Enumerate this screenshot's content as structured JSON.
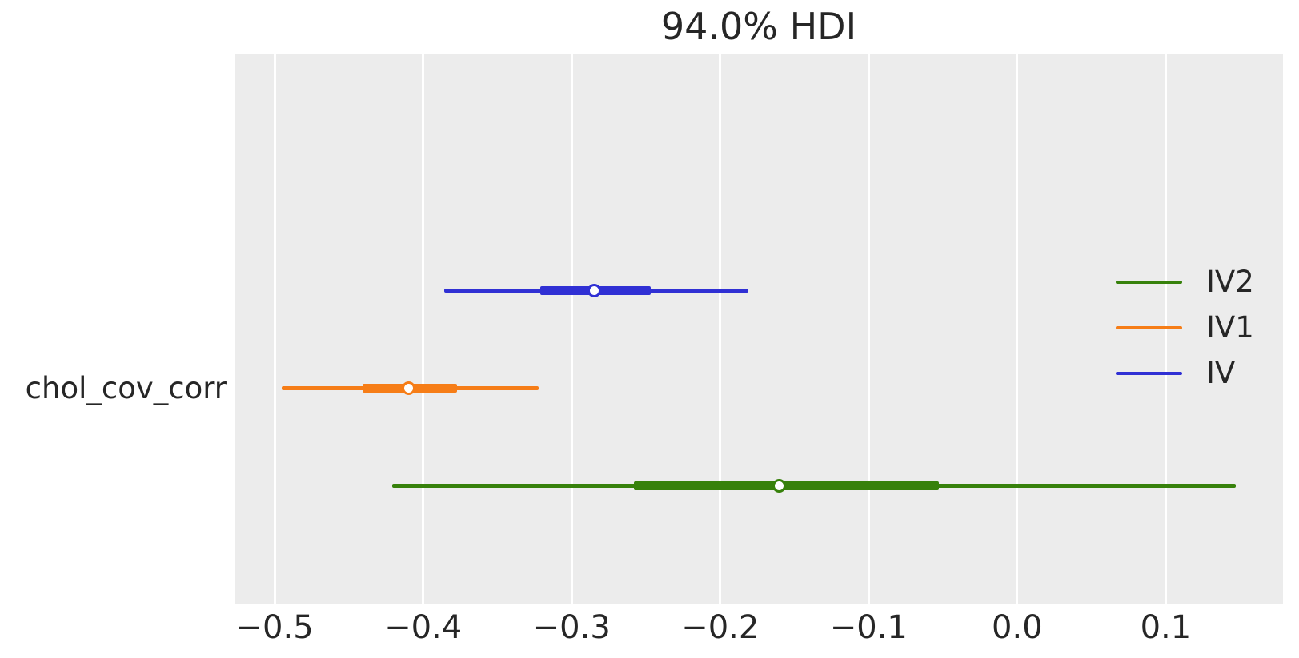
{
  "title": "94.0% HDI",
  "y_axis_label": "chol_cov_corr",
  "colors": {
    "plot_background": "#ececec",
    "gridline": "#ffffff",
    "text": "#262626",
    "iv2_green": "#37810b",
    "iv1_orange": "#f67d17",
    "iv_blue": "#3030d4"
  },
  "chart_data": {
    "type": "forest",
    "title": "94.0% HDI",
    "hdi_probability": "94.0%",
    "row_label": "chol_cov_corr",
    "xlim": [
      -0.527,
      0.179
    ],
    "x_ticks": [
      -0.5,
      -0.4,
      -0.3,
      -0.2,
      -0.1,
      0.0,
      0.1
    ],
    "x_tick_labels": [
      "−0.5",
      "−0.4",
      "−0.3",
      "−0.2",
      "−0.1",
      "0.0",
      "0.1"
    ],
    "grid": "vertical-white-on-gray",
    "legend_position": "center-right",
    "series": [
      {
        "name": "IV",
        "color": "#3030d4",
        "hdi_low": -0.386,
        "hdi_high": -0.181,
        "quartile_low": -0.321,
        "quartile_high": -0.247,
        "median": -0.285,
        "row_y": 295
      },
      {
        "name": "IV1",
        "color": "#f67d17",
        "hdi_low": -0.495,
        "hdi_high": -0.322,
        "quartile_low": -0.441,
        "quartile_high": -0.377,
        "median": -0.41,
        "row_y": 417
      },
      {
        "name": "IV2",
        "color": "#37810b",
        "hdi_low": -0.421,
        "hdi_high": 0.147,
        "quartile_low": -0.258,
        "quartile_high": -0.053,
        "median": -0.16,
        "row_y": 539
      }
    ],
    "legend": [
      {
        "label": "IV2",
        "color": "#37810b"
      },
      {
        "label": "IV1",
        "color": "#f67d17"
      },
      {
        "label": "IV",
        "color": "#3030d4"
      }
    ]
  }
}
